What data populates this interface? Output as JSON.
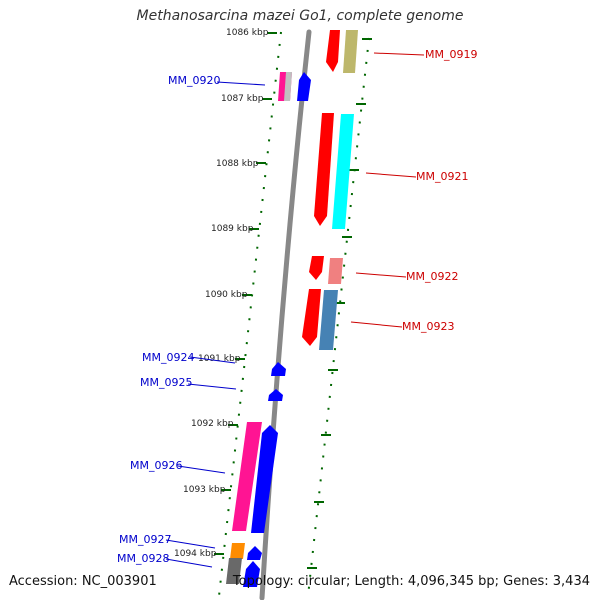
{
  "title": "Methanosarcina mazei Go1, complete genome",
  "footer": {
    "accession": "Accession: NC_003901",
    "summary": "Topology: circular; Length: 4,096,345 bp; Genes: 3,434"
  },
  "ticks": [
    "1086 kbp",
    "1087 kbp",
    "1088 kbp",
    "1089 kbp",
    "1090 kbp",
    "1091 kbp",
    "1092 kbp",
    "1093 kbp",
    "1094 kbp"
  ],
  "genes": {
    "forward": [
      {
        "name": "MM_0919",
        "color": "#cc0000"
      },
      {
        "name": "MM_0921",
        "color": "#cc0000"
      },
      {
        "name": "MM_0922",
        "color": "#cc0000"
      },
      {
        "name": "MM_0923",
        "color": "#cc0000"
      }
    ],
    "reverse": [
      {
        "name": "MM_0920",
        "color": "#0000cc"
      },
      {
        "name": "MM_0924",
        "color": "#0000cc"
      },
      {
        "name": "MM_0925",
        "color": "#0000cc"
      },
      {
        "name": "MM_0926",
        "color": "#0000cc"
      },
      {
        "name": "MM_0927",
        "color": "#0000cc"
      },
      {
        "name": "MM_0928",
        "color": "#0000cc"
      }
    ]
  },
  "colors": {
    "backbone": "#888888",
    "dotted_track": "#006600",
    "forward_cds": "#ff0000",
    "reverse_cds": "#0000ff"
  }
}
